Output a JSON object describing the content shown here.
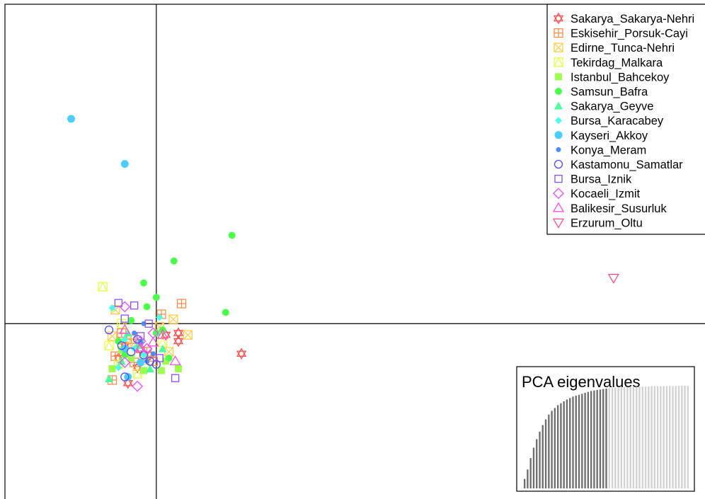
{
  "chart_data": {
    "type": "scatter",
    "x_axis_value": 0,
    "y_axis_value": 0,
    "xlim": [
      -2.4,
      8.7
    ],
    "ylim": [
      -2.8,
      5.1
    ],
    "legend_placement": "top-right",
    "grid": false,
    "series": [
      {
        "name": "Sakarya_Sakarya-Nehri",
        "color": "#ff4d4d",
        "marker": "star6",
        "points": [
          [
            1.35,
            -0.48
          ],
          [
            0.35,
            -0.15
          ],
          [
            0.35,
            -0.28
          ],
          [
            -0.45,
            -0.95
          ],
          [
            -0.25,
            -0.42
          ],
          [
            0.15,
            -0.18
          ],
          [
            -0.6,
            -0.55
          ],
          [
            -0.3,
            -0.7
          ],
          [
            -0.5,
            -0.35
          ],
          [
            -0.1,
            -0.5
          ]
        ]
      },
      {
        "name": "Eskisehir_Porsuk-Cayi",
        "color": "#ff8c4d",
        "marker": "boxplus",
        "points": [
          [
            0.4,
            0.32
          ],
          [
            0.08,
            0.15
          ],
          [
            -0.7,
            -0.9
          ],
          [
            -0.65,
            -0.52
          ],
          [
            -0.4,
            -0.25
          ],
          [
            -0.05,
            -0.6
          ],
          [
            -0.55,
            -0.15
          ],
          [
            -0.15,
            -0.45
          ],
          [
            -0.35,
            -0.62
          ]
        ]
      },
      {
        "name": "Edirne_Tunca-Nehri",
        "color": "#ffcc4d",
        "marker": "boxcross",
        "points": [
          [
            0.27,
            0.07
          ],
          [
            0.5,
            -0.18
          ],
          [
            -0.65,
            0.22
          ],
          [
            0.05,
            -0.05
          ],
          [
            -0.45,
            -0.3
          ],
          [
            -0.2,
            -0.58
          ],
          [
            0.2,
            -0.45
          ],
          [
            -0.7,
            -0.2
          ]
        ]
      },
      {
        "name": "Tekirdag_Malkara",
        "color": "#e6ff4d",
        "marker": "boxtri",
        "points": [
          [
            -0.85,
            0.59
          ],
          [
            -0.55,
            0.0
          ],
          [
            -0.75,
            -0.35
          ],
          [
            -0.3,
            -0.8
          ],
          [
            -0.6,
            -0.65
          ],
          [
            0.1,
            -0.3
          ]
        ]
      },
      {
        "name": "Istanbul_Bahcekoy",
        "color": "#9cff4d",
        "marker": "square",
        "points": [
          [
            0.08,
            -0.75
          ],
          [
            0.35,
            -0.72
          ],
          [
            -0.7,
            -0.72
          ],
          [
            -0.4,
            -0.55
          ],
          [
            -0.2,
            -0.75
          ],
          [
            0.15,
            -0.6
          ],
          [
            -0.55,
            -0.42
          ]
        ]
      },
      {
        "name": "Samsun_Bafra",
        "color": "#4dff4d",
        "marker": "circle",
        "points": [
          [
            1.2,
            1.41
          ],
          [
            0.28,
            1.0
          ],
          [
            -0.2,
            0.65
          ],
          [
            0.0,
            0.42
          ],
          [
            1.1,
            0.18
          ],
          [
            0.0,
            -0.15
          ],
          [
            -0.15,
            0.27
          ],
          [
            -0.5,
            -0.5
          ],
          [
            -0.25,
            -0.3
          ],
          [
            0.1,
            -0.1
          ],
          [
            -0.4,
            0.05
          ],
          [
            0.2,
            -0.55
          ],
          [
            -0.6,
            -0.28
          ]
        ]
      },
      {
        "name": "Sakarya_Geyve",
        "color": "#4dff9c",
        "marker": "triangle",
        "points": [
          [
            -0.75,
            -0.88
          ],
          [
            -0.55,
            -0.6
          ],
          [
            -0.3,
            -0.35
          ],
          [
            -0.1,
            -0.72
          ],
          [
            0.1,
            -0.4
          ],
          [
            -0.45,
            -0.15
          ]
        ]
      },
      {
        "name": "Bursa_Karacabey",
        "color": "#4dffe6",
        "marker": "diamond",
        "points": [
          [
            -0.7,
            0.25
          ],
          [
            -0.5,
            -0.25
          ],
          [
            -0.2,
            -0.5
          ],
          [
            -0.6,
            -0.7
          ],
          [
            0.05,
            0.1
          ],
          [
            -0.35,
            -0.4
          ]
        ]
      },
      {
        "name": "Kayseri_Akkoy",
        "color": "#4dccff",
        "marker": "circlebig",
        "points": [
          [
            -1.35,
            3.27
          ],
          [
            -0.5,
            2.55
          ],
          [
            -0.5,
            -0.4
          ],
          [
            -0.25,
            -0.62
          ],
          [
            -0.45,
            -0.85
          ]
        ]
      },
      {
        "name": "Konya_Meram",
        "color": "#4d8cff",
        "marker": "dot",
        "points": [
          [
            -0.2,
            0.0
          ],
          [
            -0.25,
            -0.3
          ],
          [
            -0.05,
            -0.48
          ],
          [
            -0.35,
            -0.15
          ],
          [
            -0.15,
            -0.6
          ]
        ]
      },
      {
        "name": "Kastamonu_Samatlar",
        "color": "#4d4dff",
        "marker": "ocircle",
        "points": [
          [
            -0.75,
            -0.1
          ],
          [
            -0.4,
            -0.45
          ],
          [
            -0.1,
            -0.6
          ],
          [
            -0.3,
            -0.25
          ],
          [
            0.0,
            -0.65
          ],
          [
            -0.55,
            -0.35
          ],
          [
            -0.2,
            -0.5
          ],
          [
            -0.5,
            -0.85
          ]
        ]
      },
      {
        "name": "Bursa_Iznik",
        "color": "#8c4dff",
        "marker": "osquare",
        "points": [
          [
            -0.6,
            0.33
          ],
          [
            -0.35,
            0.29
          ],
          [
            -0.5,
            0.08
          ],
          [
            0.3,
            -0.87
          ],
          [
            -0.12,
            0.0
          ],
          [
            -0.25,
            -0.2
          ],
          [
            0.05,
            -0.55
          ]
        ]
      },
      {
        "name": "Kocaeli_Izmit",
        "color": "#e64dff",
        "marker": "odiamond",
        "points": [
          [
            -0.5,
            0.27
          ],
          [
            -0.25,
            -0.28
          ],
          [
            -0.05,
            -0.15
          ],
          [
            -0.5,
            -0.62
          ],
          [
            -0.3,
            -1.0
          ],
          [
            -0.15,
            -0.4
          ]
        ]
      },
      {
        "name": "Balikesir_Susurluk",
        "color": "#ff4de6",
        "marker": "otriangle",
        "points": [
          [
            0.1,
            -0.18
          ],
          [
            0.3,
            -0.6
          ],
          [
            -0.5,
            -0.1
          ],
          [
            -0.25,
            -0.38
          ],
          [
            -0.05,
            -0.3
          ]
        ]
      },
      {
        "name": "Erzurum_Oltu",
        "color": "#ff4d8c",
        "marker": "otriangledown",
        "points": [
          [
            7.25,
            0.73
          ]
        ]
      }
    ],
    "inset": {
      "title": "PCA eigenvalues",
      "retained_count": 28,
      "dark_color": "#6e6e6e",
      "light_color": "#d2d2d2",
      "values": [
        1,
        2,
        3.2,
        4.3,
        5.2,
        6.0,
        6.7,
        7.3,
        7.8,
        8.2,
        8.5,
        8.8,
        9.0,
        9.2,
        9.4,
        9.55,
        9.7,
        9.8,
        9.9,
        10,
        10.1,
        10.2,
        10.3,
        10.35,
        10.4,
        10.45,
        10.5,
        10.55,
        10.6,
        10.62,
        10.64,
        10.66,
        10.68,
        10.7,
        10.71,
        10.72,
        10.73,
        10.74,
        10.75,
        10.76,
        10.77,
        10.78,
        10.79,
        10.8,
        10.8,
        10.81,
        10.81,
        10.82,
        10.82,
        10.83,
        10.83,
        10.84,
        10.84,
        10.85,
        10.85
      ]
    }
  }
}
